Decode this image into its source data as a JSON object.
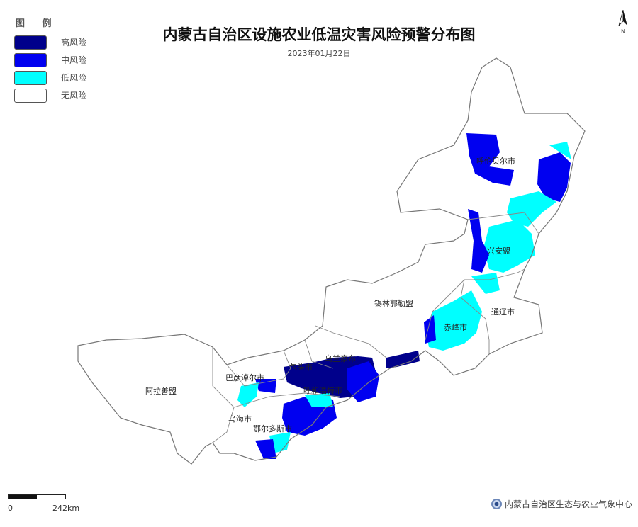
{
  "title": "内蒙古自治区设施农业低温灾害风险预警分布图",
  "date": "2023年01月22日",
  "legend": {
    "title": "图 例",
    "items": [
      {
        "label": "高风险",
        "color": "#00008b"
      },
      {
        "label": "中风险",
        "color": "#0000f0"
      },
      {
        "label": "低风险",
        "color": "#00ffff"
      },
      {
        "label": "无风险",
        "color": "#ffffff"
      }
    ]
  },
  "north_arrow": {
    "label": "N"
  },
  "regions": [
    {
      "name": "呼伦贝尔市"
    },
    {
      "name": "兴安盟"
    },
    {
      "name": "锡林郭勒盟"
    },
    {
      "name": "通辽市"
    },
    {
      "name": "赤峰市"
    },
    {
      "name": "乌兰察布"
    },
    {
      "name": "包头市"
    },
    {
      "name": "巴彦淖尔市"
    },
    {
      "name": "呼和浩特市"
    },
    {
      "name": "乌海市"
    },
    {
      "name": "鄂尔多斯市"
    },
    {
      "name": "阿拉善盟"
    }
  ],
  "scale": {
    "start": "0",
    "end": "242km"
  },
  "credit": "内蒙古自治区生态与农业气象中心"
}
